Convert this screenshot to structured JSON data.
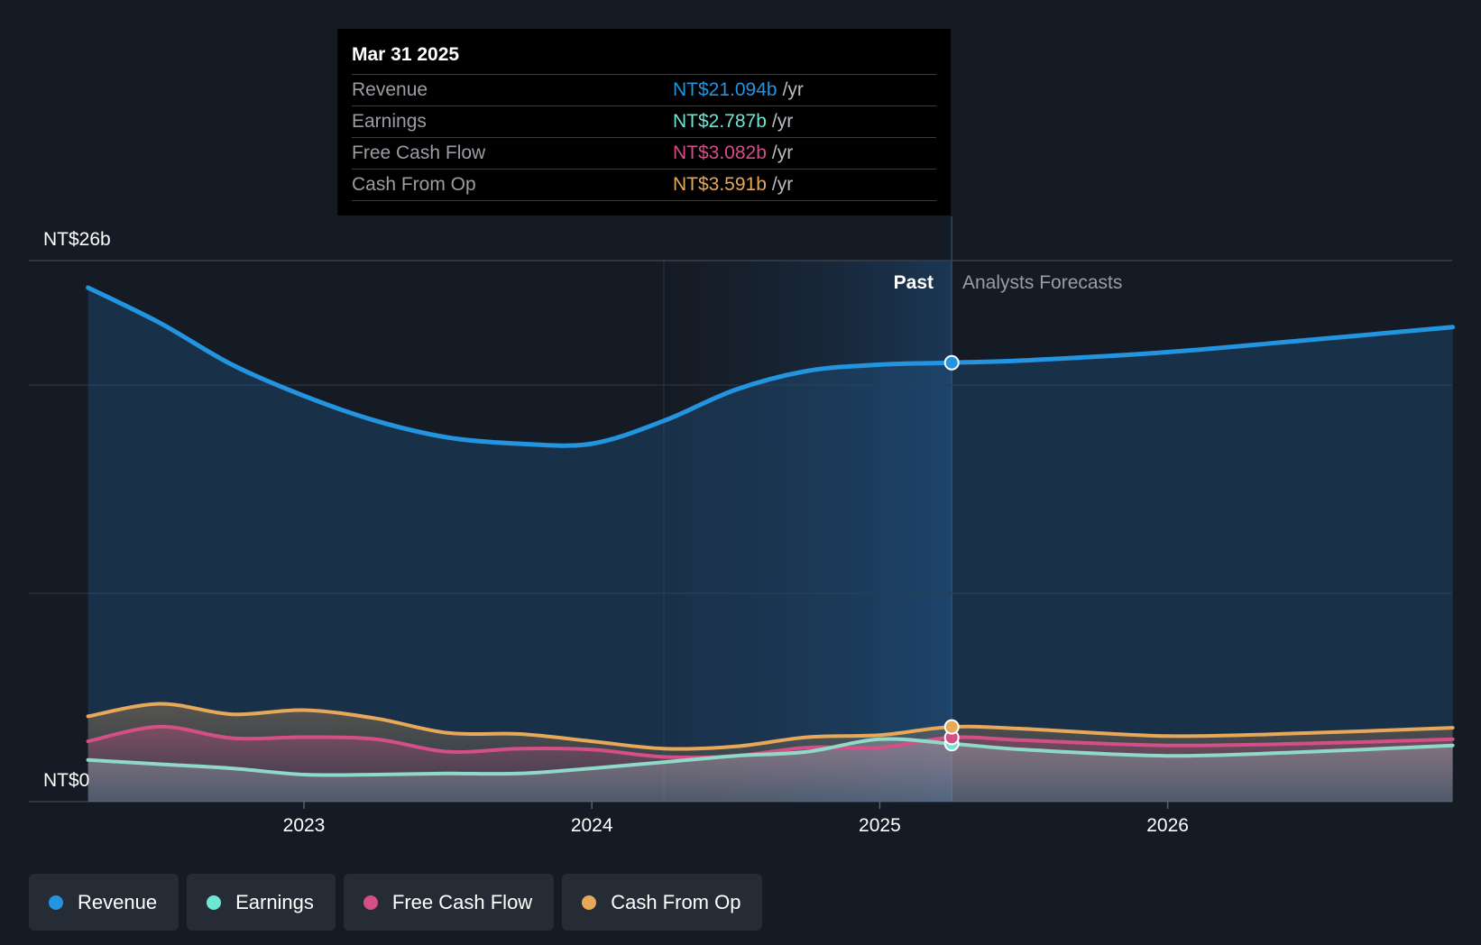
{
  "chart_data": {
    "type": "area",
    "y_axis": {
      "top_label": "NT$26b",
      "bottom_label": "NT$0",
      "ylim": [
        0,
        26
      ]
    },
    "x_ticks": [
      "2023",
      "2024",
      "2025",
      "2026"
    ],
    "section_labels": {
      "past": "Past",
      "forecast": "Analysts Forecasts"
    },
    "grid": true,
    "series": [
      {
        "name": "Revenue",
        "color": "#2394df",
        "key": "revenue",
        "points": [
          [
            2022.25,
            24.7
          ],
          [
            2022.5,
            23.0
          ],
          [
            2022.75,
            21.0
          ],
          [
            2023.0,
            19.5
          ],
          [
            2023.25,
            18.3
          ],
          [
            2023.5,
            17.5
          ],
          [
            2023.75,
            17.2
          ],
          [
            2024.0,
            17.2
          ],
          [
            2024.25,
            18.3
          ],
          [
            2024.5,
            19.8
          ],
          [
            2024.75,
            20.7
          ],
          [
            2025.0,
            21.0
          ],
          [
            2025.25,
            21.094
          ],
          [
            2025.5,
            21.2
          ],
          [
            2026.0,
            21.6
          ],
          [
            2026.5,
            22.2
          ],
          [
            2026.99,
            22.8
          ]
        ]
      },
      {
        "name": "Earnings",
        "color": "#6fe6d4",
        "key": "earnings",
        "points": [
          [
            2022.25,
            2.0
          ],
          [
            2022.5,
            1.8
          ],
          [
            2022.75,
            1.6
          ],
          [
            2023.0,
            1.3
          ],
          [
            2023.25,
            1.3
          ],
          [
            2023.5,
            1.35
          ],
          [
            2023.75,
            1.35
          ],
          [
            2024.0,
            1.6
          ],
          [
            2024.25,
            1.9
          ],
          [
            2024.5,
            2.2
          ],
          [
            2024.75,
            2.4
          ],
          [
            2025.0,
            3.0
          ],
          [
            2025.25,
            2.787
          ],
          [
            2025.5,
            2.5
          ],
          [
            2026.0,
            2.2
          ],
          [
            2026.5,
            2.4
          ],
          [
            2026.99,
            2.7
          ]
        ]
      },
      {
        "name": "Free Cash Flow",
        "color": "#d44f85",
        "key": "fcf",
        "points": [
          [
            2022.25,
            2.9
          ],
          [
            2022.5,
            3.6
          ],
          [
            2022.75,
            3.05
          ],
          [
            2023.0,
            3.1
          ],
          [
            2023.25,
            3.0
          ],
          [
            2023.5,
            2.4
          ],
          [
            2023.75,
            2.55
          ],
          [
            2024.0,
            2.5
          ],
          [
            2024.25,
            2.15
          ],
          [
            2024.5,
            2.2
          ],
          [
            2024.75,
            2.6
          ],
          [
            2025.0,
            2.6
          ],
          [
            2025.25,
            3.082
          ],
          [
            2025.5,
            2.95
          ],
          [
            2026.0,
            2.7
          ],
          [
            2026.5,
            2.8
          ],
          [
            2026.99,
            3.0
          ]
        ]
      },
      {
        "name": "Cash From Op",
        "color": "#e8a85a",
        "key": "cfo",
        "points": [
          [
            2022.25,
            4.1
          ],
          [
            2022.5,
            4.7
          ],
          [
            2022.75,
            4.2
          ],
          [
            2023.0,
            4.4
          ],
          [
            2023.25,
            4.0
          ],
          [
            2023.5,
            3.3
          ],
          [
            2023.75,
            3.25
          ],
          [
            2024.0,
            2.9
          ],
          [
            2024.25,
            2.55
          ],
          [
            2024.5,
            2.65
          ],
          [
            2024.75,
            3.1
          ],
          [
            2025.0,
            3.2
          ],
          [
            2025.25,
            3.591
          ],
          [
            2025.5,
            3.5
          ],
          [
            2026.0,
            3.15
          ],
          [
            2026.5,
            3.3
          ],
          [
            2026.99,
            3.55
          ]
        ]
      }
    ]
  },
  "tooltip": {
    "date": "Mar 31 2025",
    "rows": [
      {
        "label": "Revenue",
        "value": "NT$21.094b",
        "unit": "/yr",
        "color": "#2394df"
      },
      {
        "label": "Earnings",
        "value": "NT$2.787b",
        "unit": "/yr",
        "color": "#6fe6d4"
      },
      {
        "label": "Free Cash Flow",
        "value": "NT$3.082b",
        "unit": "/yr",
        "color": "#d44f85"
      },
      {
        "label": "Cash From Op",
        "value": "NT$3.591b",
        "unit": "/yr",
        "color": "#e8a85a"
      }
    ]
  },
  "legend": [
    {
      "label": "Revenue",
      "color": "#2394df"
    },
    {
      "label": "Earnings",
      "color": "#6fe6d4"
    },
    {
      "label": "Free Cash Flow",
      "color": "#d44f85"
    },
    {
      "label": "Cash From Op",
      "color": "#e8a85a"
    }
  ]
}
